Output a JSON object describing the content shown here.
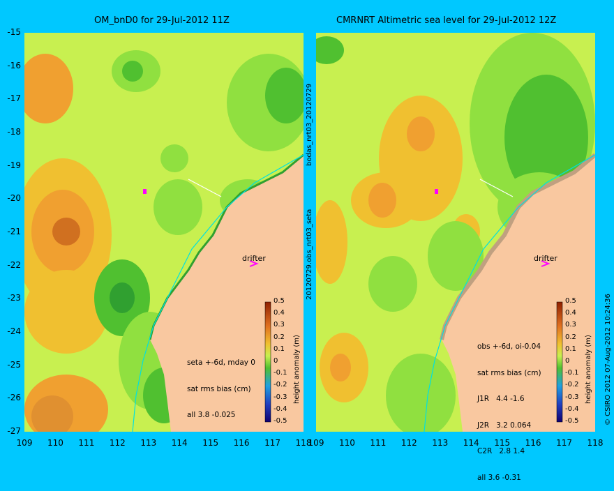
{
  "left_panel": {
    "title": "OM_bnD0 for 29-Jul-2012 11Z",
    "stats": [
      "seta +-6d, mday 0",
      "sat rms bias (cm)",
      "all 3.8 -0.025"
    ],
    "drifter_label": "drifter",
    "colorbar_title": "height anomaly (m)"
  },
  "right_panel": {
    "title": "CMRNRT Altimetric sea level  for 29-Jul-2012 12Z",
    "stats": [
      "obs +-6d, oi-0.04",
      "sat rms bias (cm)",
      "J1R   4.4 -1.6",
      "J2R   3.2 0.064",
      "C2R   2.8 1.4",
      "all 3.6 -0.31"
    ],
    "drifter_label": "drifter",
    "colorbar_title": "height anomaly (m)"
  },
  "side_labels": {
    "middle_top": "bodas_nrt03_20120729",
    "middle_bottom": "20120729.obs_nrt03_seta",
    "right_edge": "© CSIRO 2012   07-Aug-2012 10:24:36"
  },
  "axes": {
    "lat_ticks": [
      "-15",
      "-16",
      "-17",
      "-18",
      "-19",
      "-20",
      "-21",
      "-22",
      "-23",
      "-24",
      "-25",
      "-26",
      "-27"
    ],
    "lon_ticks": [
      "109",
      "110",
      "111",
      "112",
      "113",
      "114",
      "115",
      "116",
      "117",
      "118"
    ],
    "lat_range": [
      -27,
      -15
    ],
    "lon_range": [
      109,
      118
    ]
  },
  "colorbar": {
    "ticks": [
      "0.5",
      "0.4",
      "0.3",
      "0.2",
      "0.1",
      "0",
      "-0.1",
      "-0.2",
      "-0.3",
      "-0.4",
      "-0.5"
    ],
    "range": [
      -0.5,
      0.5
    ]
  },
  "colors": {
    "background": "#00c8ff",
    "land": "#f9c8a0",
    "coast_line": "#00ffff",
    "drifter_marker": "#ff00ff"
  }
}
